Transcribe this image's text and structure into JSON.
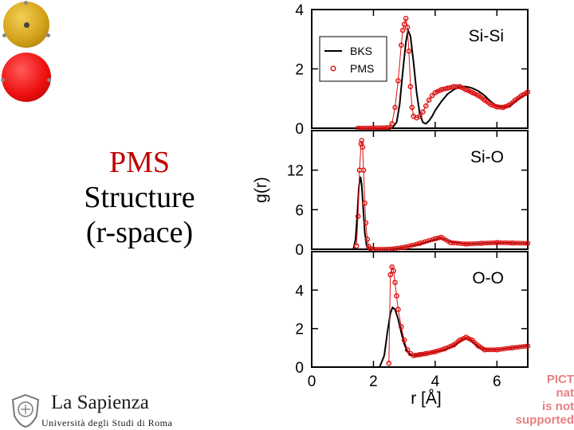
{
  "slide": {
    "title_lines": [
      "PMS",
      "Structure",
      "(r-space)"
    ],
    "logo_name": "La Sapienza",
    "logo_subtitle": "Università degli Studi di Roma",
    "placeholder_lines": [
      "PICT",
      "nat",
      "is not supported"
    ]
  },
  "colors": {
    "bks": "#000000",
    "pms": "#dd1111",
    "title_accent": "#c00000"
  },
  "chart_data": {
    "type": "line",
    "xlabel": "r [Å]",
    "ylabel": "g(r)",
    "xlim": [
      0,
      7
    ],
    "x_ticks": [
      0,
      2,
      4,
      6
    ],
    "legend": {
      "position": "top-left",
      "entries": [
        "BKS",
        "PMS"
      ]
    },
    "panels": [
      {
        "label": "Si-Si",
        "ylim": [
          0,
          4
        ],
        "y_ticks": [
          0,
          2,
          4
        ],
        "series": [
          {
            "name": "BKS",
            "style": "line",
            "x": [
              0,
              2.6,
              2.75,
              2.85,
              2.95,
              3.05,
              3.12,
              3.2,
              3.3,
              3.4,
              3.5,
              3.6,
              3.7,
              3.8,
              3.9,
              4.0,
              4.2,
              4.4,
              4.6,
              4.8,
              5.0,
              5.2,
              5.4,
              5.6,
              5.8,
              6.0,
              6.2,
              6.4,
              6.6,
              6.8,
              7.0
            ],
            "y": [
              0,
              0,
              0.2,
              0.8,
              1.9,
              2.9,
              3.3,
              3.1,
              2.2,
              1.2,
              0.5,
              0.2,
              0.15,
              0.25,
              0.4,
              0.6,
              0.9,
              1.15,
              1.3,
              1.4,
              1.4,
              1.35,
              1.25,
              1.1,
              0.9,
              0.75,
              0.7,
              0.75,
              0.9,
              1.05,
              1.15
            ]
          },
          {
            "name": "PMS",
            "style": "markers",
            "x": [
              1.5,
              2.5,
              2.6,
              2.7,
              2.8,
              2.9,
              2.95,
              3.0,
              3.05,
              3.1,
              3.15,
              3.2,
              3.25,
              3.3,
              3.4,
              3.5,
              3.6,
              3.7,
              3.8,
              3.9,
              4.0,
              4.2,
              4.4,
              4.6,
              4.8,
              5.0,
              5.2,
              5.4,
              5.6,
              5.8,
              6.0,
              6.2,
              6.4,
              6.6,
              6.8,
              7.0
            ],
            "y": [
              0,
              0.02,
              0.15,
              0.7,
              1.6,
              2.8,
              3.3,
              3.5,
              3.7,
              3.4,
              2.6,
              1.4,
              0.7,
              0.4,
              0.35,
              0.4,
              0.55,
              0.75,
              0.95,
              1.1,
              1.2,
              1.3,
              1.35,
              1.4,
              1.4,
              1.3,
              1.2,
              1.1,
              0.95,
              0.8,
              0.72,
              0.7,
              0.78,
              0.95,
              1.1,
              1.22
            ]
          }
        ]
      },
      {
        "label": "Si-O",
        "ylim": [
          0,
          18
        ],
        "y_ticks": [
          0,
          6,
          12
        ],
        "series": [
          {
            "name": "BKS",
            "style": "line",
            "x": [
              0,
              1.35,
              1.42,
              1.48,
              1.53,
              1.58,
              1.62,
              1.67,
              1.72,
              1.78,
              1.85,
              2.0,
              2.5,
              3.0,
              3.5,
              4.0,
              4.2,
              4.5,
              5.0,
              5.5,
              6.0,
              7.0
            ],
            "y": [
              0,
              0,
              1.5,
              5.5,
              9.5,
              11.0,
              9.8,
              6.0,
              2.5,
              0.5,
              0.05,
              0,
              0,
              0.3,
              0.8,
              1.5,
              1.7,
              1.1,
              0.8,
              0.9,
              1.0,
              0.9
            ]
          },
          {
            "name": "PMS",
            "style": "markers",
            "x": [
              1.45,
              1.5,
              1.55,
              1.6,
              1.62,
              1.65,
              1.68,
              1.72,
              1.75,
              1.8,
              1.85,
              1.9,
              2.0,
              2.5,
              3.0,
              3.5,
              4.0,
              4.2,
              4.5,
              5.0,
              5.5,
              6.0,
              6.5,
              7.0
            ],
            "y": [
              0.5,
              5.0,
              12.0,
              16.0,
              16.5,
              15.5,
              12.0,
              7.0,
              4.0,
              1.5,
              0.4,
              0.1,
              0,
              0,
              0.3,
              0.9,
              1.6,
              1.8,
              1.0,
              0.8,
              0.9,
              1.0,
              0.95,
              0.9
            ]
          }
        ]
      },
      {
        "label": "O-O",
        "ylim": [
          0,
          6
        ],
        "y_ticks": [
          0,
          2,
          4
        ],
        "series": [
          {
            "name": "BKS",
            "style": "line",
            "x": [
              0,
              2.2,
              2.35,
              2.45,
              2.55,
              2.62,
              2.7,
              2.8,
              2.9,
              3.0,
              3.1,
              3.2,
              3.3,
              3.5,
              3.7,
              4.0,
              4.3,
              4.6,
              4.8,
              5.0,
              5.2,
              5.4,
              5.6,
              6.0,
              6.5,
              7.0
            ],
            "y": [
              0,
              0,
              0.6,
              1.8,
              2.8,
              3.1,
              3.0,
              2.5,
              1.8,
              1.2,
              0.8,
              0.65,
              0.6,
              0.65,
              0.7,
              0.8,
              0.9,
              1.1,
              1.35,
              1.5,
              1.35,
              1.05,
              0.9,
              0.9,
              1.0,
              1.1
            ]
          },
          {
            "name": "PMS",
            "style": "markers",
            "x": [
              2.5,
              2.55,
              2.6,
              2.65,
              2.7,
              2.75,
              2.8,
              2.9,
              3.0,
              3.1,
              3.2,
              3.3,
              3.5,
              3.7,
              4.0,
              4.3,
              4.6,
              4.8,
              5.0,
              5.2,
              5.4,
              5.6,
              6.0,
              6.5,
              7.0
            ],
            "y": [
              0.2,
              4.8,
              5.2,
              5.0,
              4.4,
              3.7,
              3.0,
              2.1,
              1.4,
              0.9,
              0.7,
              0.6,
              0.65,
              0.7,
              0.8,
              0.95,
              1.15,
              1.4,
              1.55,
              1.4,
              1.1,
              0.9,
              0.9,
              1.0,
              1.1
            ]
          }
        ]
      }
    ]
  }
}
